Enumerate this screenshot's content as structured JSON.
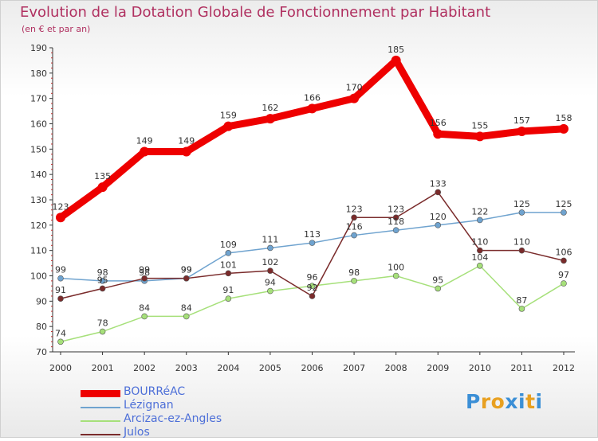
{
  "title": "Evolution de la Dotation Globale de Fonctionnement par Habitant",
  "subtitle": "(en € et par an)",
  "logo": {
    "letters": [
      "P",
      "r",
      "o",
      "x",
      "i",
      "t",
      "i"
    ],
    "colors": [
      "#3b8fd6",
      "#e8a020",
      "#e8a020",
      "#3b8fd6",
      "#3b8fd6",
      "#e8a020",
      "#3b8fd6"
    ]
  },
  "chart_data": {
    "type": "line",
    "title": "Evolution de la Dotation Globale de Fonctionnement par Habitant",
    "subtitle": "(en € et par an)",
    "x": [
      "2000",
      "2001",
      "2002",
      "2003",
      "2004",
      "2005",
      "2006",
      "2007",
      "2008",
      "2009",
      "2010",
      "2011",
      "2012"
    ],
    "ylim": [
      70,
      190
    ],
    "yticks": [
      70,
      80,
      90,
      100,
      110,
      120,
      130,
      140,
      150,
      160,
      170,
      180,
      190
    ],
    "grid": false,
    "legend_position": "bottom-left",
    "series": [
      {
        "name": "BOURRéAC",
        "color": "#ee0000",
        "thick": true,
        "values": [
          123,
          135,
          149,
          149,
          159,
          162,
          166,
          170,
          185,
          156,
          155,
          157,
          158
        ]
      },
      {
        "name": "Lézignan",
        "color": "#6fa3cf",
        "thick": false,
        "values": [
          99,
          98,
          98,
          99,
          109,
          111,
          113,
          116,
          118,
          120,
          122,
          125,
          125
        ]
      },
      {
        "name": "Arcizac-ez-Angles",
        "color": "#a6e07a",
        "thick": false,
        "values": [
          74,
          78,
          84,
          84,
          91,
          94,
          96,
          98,
          100,
          95,
          104,
          87,
          97
        ]
      },
      {
        "name": "Julos",
        "color": "#7a2b2b",
        "thick": false,
        "values": [
          91,
          95,
          99,
          99,
          101,
          102,
          92,
          123,
          123,
          133,
          110,
          110,
          106
        ]
      }
    ]
  }
}
